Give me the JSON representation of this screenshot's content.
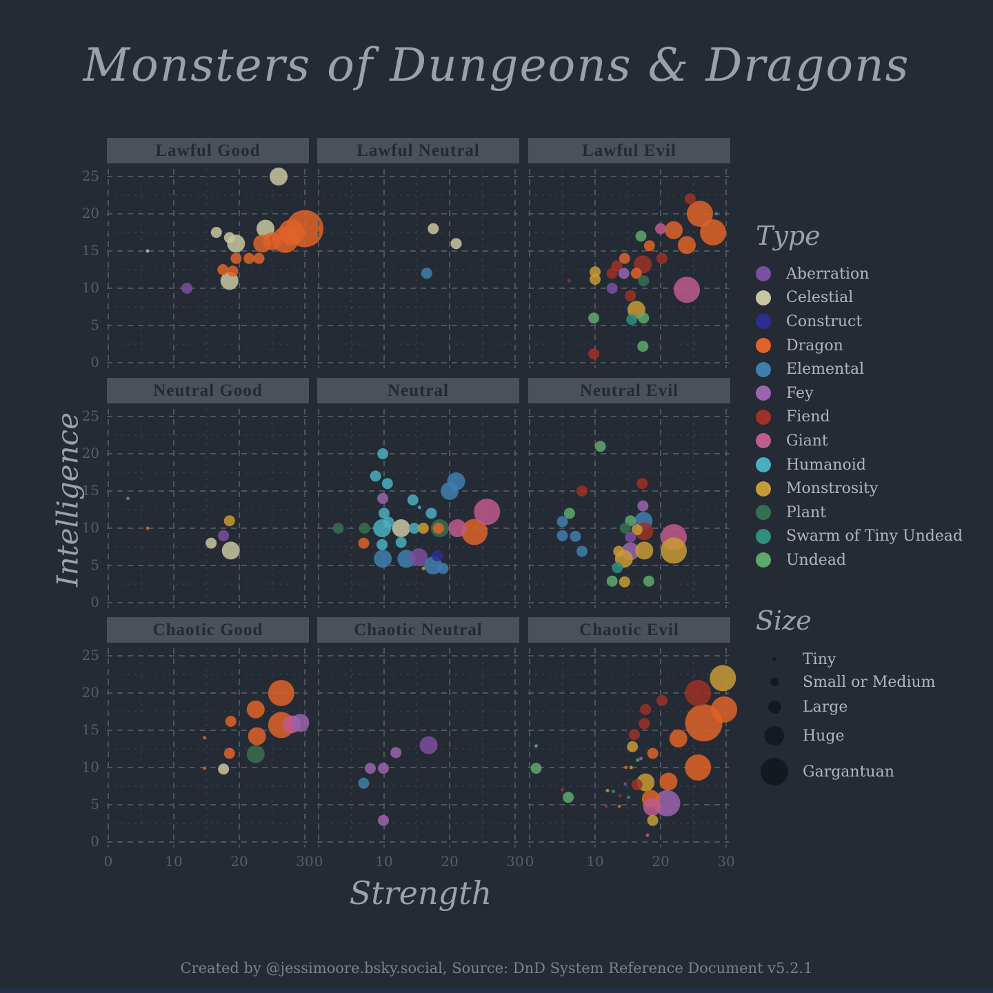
{
  "title": "Monsters of Dungeons & Dragons",
  "footer": "Created by @jessimoore.bsky.social, Source: DnD System Reference Document v5.2.1",
  "axes": {
    "x_label": "Strength",
    "y_label": "Intelligence",
    "x_ticks": [
      0,
      10,
      20,
      30
    ],
    "y_ticks": [
      25,
      20,
      15,
      10,
      5,
      0
    ]
  },
  "legend": {
    "type_title": "Type",
    "size_title": "Size",
    "types": [
      {
        "key": "aberration",
        "label": "Aberration",
        "color": "#7c4e9f"
      },
      {
        "key": "celestial",
        "label": "Celestial",
        "color": "#c8c6a1"
      },
      {
        "key": "construct",
        "label": "Construct",
        "color": "#2e2e91"
      },
      {
        "key": "dragon",
        "label": "Dragon",
        "color": "#df6328"
      },
      {
        "key": "elemental",
        "label": "Elemental",
        "color": "#3f7fae"
      },
      {
        "key": "fey",
        "label": "Fey",
        "color": "#9b64b0"
      },
      {
        "key": "fiend",
        "label": "Fiend",
        "color": "#9e3128"
      },
      {
        "key": "giant",
        "label": "Giant",
        "color": "#c05b8d"
      },
      {
        "key": "humanoid",
        "label": "Humanoid",
        "color": "#49afbe"
      },
      {
        "key": "monstrosity",
        "label": "Monstrosity",
        "color": "#c79b35"
      },
      {
        "key": "plant",
        "label": "Plant",
        "color": "#37704f"
      },
      {
        "key": "swarm",
        "label": "Swarm of Tiny Undead",
        "color": "#2f8d82"
      },
      {
        "key": "undead",
        "label": "Undead",
        "color": "#5fa86d"
      }
    ],
    "sizes": [
      {
        "class": 1,
        "label": "Tiny"
      },
      {
        "class": 2,
        "label": "Small or Medium"
      },
      {
        "class": 3,
        "label": "Large"
      },
      {
        "class": 4,
        "label": "Huge"
      },
      {
        "class": 5,
        "label": "Gargantuan"
      }
    ]
  },
  "chart_data": {
    "type": "scatter",
    "x_domain": [
      0,
      30
    ],
    "y_domain": [
      0,
      25
    ],
    "grid": "dashed",
    "legend_position": "right",
    "point_format": [
      "strength",
      "intelligence",
      "type",
      "size_class"
    ],
    "size_classes": {
      "1": "Tiny",
      "2": "Small or Medium",
      "3": "Large",
      "4": "Huge",
      "5": "Gargantuan"
    },
    "facets": [
      {
        "title": "Lawful Good",
        "points": [
          [
            26,
            25,
            "celestial",
            3
          ],
          [
            6,
            15,
            "celestial",
            1
          ],
          [
            24,
            18,
            "celestial",
            3
          ],
          [
            16.5,
            17.5,
            "celestial",
            2
          ],
          [
            18.5,
            16.8,
            "celestial",
            2
          ],
          [
            19.5,
            16,
            "celestial",
            3
          ],
          [
            30,
            18,
            "dragon",
            5
          ],
          [
            28,
            17.5,
            "dragon",
            4
          ],
          [
            27,
            16.5,
            "dragon",
            4
          ],
          [
            25,
            16.3,
            "dragon",
            3
          ],
          [
            23.5,
            16,
            "dragon",
            3
          ],
          [
            21.5,
            14,
            "dragon",
            2
          ],
          [
            23,
            14,
            "dragon",
            2
          ],
          [
            19.5,
            14,
            "dragon",
            2
          ],
          [
            19,
            12.3,
            "dragon",
            2
          ],
          [
            17.5,
            12.5,
            "dragon",
            2
          ],
          [
            18.5,
            11,
            "celestial",
            3
          ],
          [
            12,
            10,
            "aberration",
            2
          ]
        ]
      },
      {
        "title": "Lawful Neutral",
        "points": [
          [
            17.5,
            18,
            "celestial",
            2
          ],
          [
            21,
            16,
            "celestial",
            2
          ],
          [
            16.5,
            12,
            "elemental",
            2
          ]
        ]
      },
      {
        "title": "Lawful Evil",
        "points": [
          [
            24.5,
            22,
            "fiend",
            2
          ],
          [
            26,
            20,
            "dragon",
            4
          ],
          [
            28.5,
            20,
            "elemental",
            1
          ],
          [
            28,
            17.5,
            "dragon",
            4
          ],
          [
            22,
            17.8,
            "dragon",
            3
          ],
          [
            20,
            18,
            "giant",
            2
          ],
          [
            24,
            15.8,
            "dragon",
            3
          ],
          [
            17,
            17,
            "undead",
            2
          ],
          [
            18.3,
            15.7,
            "dragon",
            2
          ],
          [
            14.5,
            14,
            "dragon",
            2
          ],
          [
            17.3,
            13.2,
            "fiend",
            3
          ],
          [
            20.2,
            14,
            "fiend",
            2
          ],
          [
            13.3,
            13,
            "fiend",
            2
          ],
          [
            10,
            12.2,
            "monstrosity",
            2
          ],
          [
            10,
            11.2,
            "monstrosity",
            2
          ],
          [
            14.4,
            12,
            "fey",
            2
          ],
          [
            16.3,
            12,
            "dragon",
            2
          ],
          [
            12.6,
            12,
            "fiend",
            2
          ],
          [
            6,
            11,
            "fiend",
            1
          ],
          [
            17.4,
            11,
            "plant",
            2
          ],
          [
            12.6,
            10,
            "aberration",
            2
          ],
          [
            24,
            9.8,
            "giant",
            4
          ],
          [
            15.4,
            9,
            "fiend",
            2
          ],
          [
            16.3,
            7.1,
            "monstrosity",
            3
          ],
          [
            17.4,
            6,
            "undead",
            2
          ],
          [
            15.6,
            5.8,
            "swarm",
            2
          ],
          [
            9.8,
            6,
            "undead",
            2
          ],
          [
            17.3,
            2.2,
            "undead",
            2
          ],
          [
            9.8,
            1.2,
            "fiend",
            2
          ]
        ]
      },
      {
        "title": "Neutral Good",
        "points": [
          [
            3,
            14,
            "fey",
            1
          ],
          [
            6,
            10,
            "dragon",
            1
          ],
          [
            18.5,
            11,
            "monstrosity",
            2
          ],
          [
            17.6,
            9,
            "aberration",
            2
          ],
          [
            15.7,
            8,
            "celestial",
            2
          ],
          [
            18.7,
            7,
            "celestial",
            3
          ]
        ]
      },
      {
        "title": "Neutral",
        "points": [
          [
            9.8,
            20,
            "humanoid",
            2
          ],
          [
            8.7,
            17,
            "humanoid",
            2
          ],
          [
            10.5,
            16,
            "humanoid",
            2
          ],
          [
            21,
            16.3,
            "elemental",
            3
          ],
          [
            20,
            15,
            "elemental",
            3
          ],
          [
            9.8,
            14,
            "fey",
            2
          ],
          [
            14.4,
            13.8,
            "humanoid",
            2
          ],
          [
            15.4,
            12.8,
            "humanoid",
            1
          ],
          [
            17.2,
            12,
            "humanoid",
            2
          ],
          [
            10,
            12,
            "humanoid",
            2
          ],
          [
            10.7,
            10.8,
            "humanoid",
            2
          ],
          [
            3,
            10,
            "plant",
            2
          ],
          [
            4.3,
            10,
            "construct",
            1
          ],
          [
            7,
            10,
            "plant",
            2
          ],
          [
            9.7,
            10,
            "humanoid",
            3
          ],
          [
            12.6,
            10,
            "celestial",
            3
          ],
          [
            14.6,
            10,
            "humanoid",
            2
          ],
          [
            16,
            10,
            "monstrosity",
            2
          ],
          [
            18.3,
            10,
            "dragon",
            2
          ],
          [
            18.5,
            10,
            "plant",
            3
          ],
          [
            21.2,
            10,
            "giant",
            3
          ],
          [
            23.8,
            9.5,
            "dragon",
            4
          ],
          [
            25.7,
            12.2,
            "giant",
            4
          ],
          [
            6.9,
            8,
            "dragon",
            2
          ],
          [
            9.7,
            7.8,
            "humanoid",
            2
          ],
          [
            12.6,
            8.1,
            "humanoid",
            2
          ],
          [
            9.8,
            5.9,
            "elemental",
            3
          ],
          [
            13.4,
            5.9,
            "elemental",
            3
          ],
          [
            15.3,
            6.1,
            "aberration",
            3
          ],
          [
            18.1,
            6.3,
            "construct",
            2
          ],
          [
            17.5,
            5,
            "elemental",
            3
          ],
          [
            19,
            4.6,
            "elemental",
            2
          ],
          [
            16,
            4.6,
            "monstrosity",
            1
          ]
        ]
      },
      {
        "title": "Neutral Evil",
        "points": [
          [
            10.8,
            21,
            "undead",
            2
          ],
          [
            17.2,
            16,
            "fiend",
            2
          ],
          [
            8,
            15,
            "fiend",
            2
          ],
          [
            17.3,
            13,
            "fey",
            2
          ],
          [
            6.1,
            12,
            "undead",
            2
          ],
          [
            5,
            10.9,
            "elemental",
            2
          ],
          [
            15.4,
            11,
            "undead",
            2
          ],
          [
            17.4,
            11,
            "elemental",
            3
          ],
          [
            14.6,
            10,
            "plant",
            2
          ],
          [
            16.4,
            9.8,
            "monstrosity",
            2
          ],
          [
            17.5,
            9.6,
            "fiend",
            3
          ],
          [
            5,
            9,
            "elemental",
            2
          ],
          [
            7,
            8.9,
            "elemental",
            2
          ],
          [
            15.4,
            8.8,
            "aberration",
            2
          ],
          [
            22,
            8.8,
            "giant",
            4
          ],
          [
            8,
            6.9,
            "elemental",
            2
          ],
          [
            15.4,
            6.9,
            "fey",
            3
          ],
          [
            17.5,
            7,
            "monstrosity",
            3
          ],
          [
            13.6,
            6.9,
            "monstrosity",
            2
          ],
          [
            22,
            7,
            "monstrosity",
            4
          ],
          [
            14.4,
            5.9,
            "monstrosity",
            3
          ],
          [
            13.4,
            4.7,
            "swarm",
            2
          ],
          [
            12.6,
            2.9,
            "undead",
            2
          ],
          [
            14.5,
            2.8,
            "monstrosity",
            2
          ],
          [
            18.2,
            2.9,
            "undead",
            2
          ]
        ]
      },
      {
        "title": "Chaotic Good",
        "points": [
          [
            26.4,
            20,
            "dragon",
            4
          ],
          [
            22.5,
            17.8,
            "dragon",
            3
          ],
          [
            26.4,
            15.7,
            "dragon",
            4
          ],
          [
            28,
            15.8,
            "giant",
            3
          ],
          [
            29.3,
            16,
            "fey",
            3
          ],
          [
            18.7,
            16.2,
            "dragon",
            2
          ],
          [
            22.7,
            14.2,
            "dragon",
            3
          ],
          [
            14.7,
            14,
            "dragon",
            1
          ],
          [
            22.5,
            11.8,
            "plant",
            3
          ],
          [
            18.5,
            11.9,
            "dragon",
            2
          ],
          [
            14.7,
            9.9,
            "dragon",
            1
          ],
          [
            17.6,
            9.8,
            "celestial",
            2
          ]
        ]
      },
      {
        "title": "Chaotic Neutral",
        "points": [
          [
            16.8,
            13,
            "aberration",
            3
          ],
          [
            11.8,
            12,
            "fey",
            2
          ],
          [
            7.9,
            9.9,
            "fey",
            2
          ],
          [
            9.9,
            9.9,
            "fey",
            2
          ],
          [
            6.9,
            7.9,
            "elemental",
            2
          ],
          [
            9.9,
            2.9,
            "fey",
            2
          ]
        ]
      },
      {
        "title": "Chaotic Evil",
        "points": [
          [
            29.5,
            22,
            "monstrosity",
            4
          ],
          [
            25.7,
            20,
            "fiend",
            4
          ],
          [
            29.7,
            17.8,
            "dragon",
            4
          ],
          [
            20.2,
            19,
            "fiend",
            2
          ],
          [
            17.7,
            17.8,
            "fiend",
            2
          ],
          [
            26.6,
            16,
            "dragon",
            5
          ],
          [
            17.5,
            15.9,
            "fiend",
            2
          ],
          [
            22.7,
            13.9,
            "dragon",
            3
          ],
          [
            16,
            14.4,
            "fiend",
            2
          ],
          [
            15.7,
            12.8,
            "monstrosity",
            2
          ],
          [
            18.8,
            11.9,
            "dragon",
            2
          ],
          [
            1,
            12.9,
            "undead",
            1
          ],
          [
            1,
            9.9,
            "undead",
            2
          ],
          [
            17,
            11.2,
            "fey",
            1
          ],
          [
            16.5,
            11,
            "undead",
            1
          ],
          [
            15.5,
            10,
            "monstrosity",
            1
          ],
          [
            14.7,
            10,
            "dragon",
            1
          ],
          [
            25.7,
            10,
            "dragon",
            4
          ],
          [
            21.2,
            8.1,
            "dragon",
            3
          ],
          [
            17.7,
            8,
            "monstrosity",
            3
          ],
          [
            16.4,
            7.7,
            "fiend",
            2
          ],
          [
            14.6,
            7.8,
            "aberration",
            1
          ],
          [
            11.9,
            6.9,
            "monstrosity",
            1
          ],
          [
            12.8,
            6.8,
            "swarm",
            1
          ],
          [
            15.1,
            6,
            "elemental",
            1
          ],
          [
            13.8,
            6.2,
            "fiend",
            1
          ],
          [
            18.5,
            5.8,
            "dragon",
            3
          ],
          [
            5.9,
            6,
            "undead",
            2
          ],
          [
            5,
            7,
            "fiend",
            1
          ],
          [
            11.7,
            4.8,
            "fiend",
            1
          ],
          [
            13.7,
            4.8,
            "dragon",
            1
          ],
          [
            18.7,
            4.7,
            "giant",
            3
          ],
          [
            21,
            5.2,
            "fey",
            4
          ],
          [
            18.8,
            2.9,
            "monstrosity",
            2
          ],
          [
            18,
            0.9,
            "giant",
            1
          ]
        ]
      }
    ]
  },
  "theme": {
    "background": "#252b34",
    "panel_header_bg": "#4a515a",
    "panel_header_text": "#242a32",
    "grid_major": "#4e555f",
    "grid_minor": "#3b424c",
    "tick_label": "#565e68",
    "heading_text": "#9aa2ac",
    "legend_text": "#aeb6c0",
    "footer_text": "#79828d",
    "size_dot": "#14181f"
  }
}
